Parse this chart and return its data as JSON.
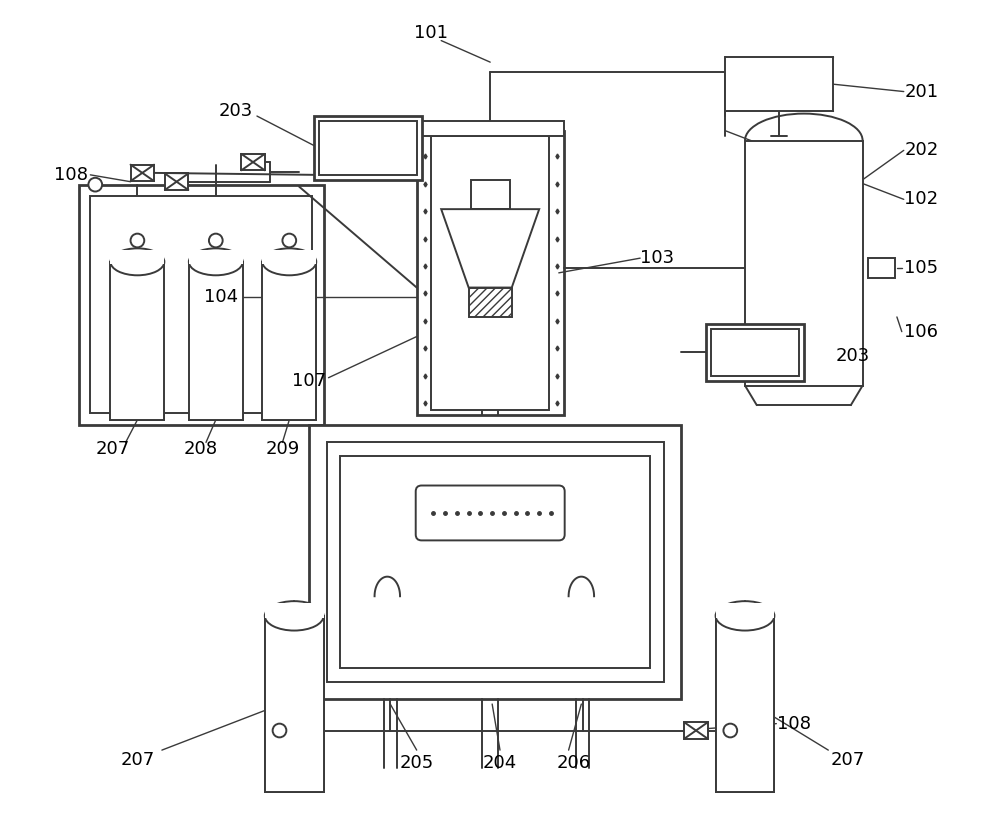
{
  "bg_color": "#ffffff",
  "lc": "#3a3a3a",
  "lw": 1.4,
  "lw2": 2.0,
  "figsize": [
    10.0,
    8.25
  ],
  "dpi": 100,
  "label_fs": 12
}
